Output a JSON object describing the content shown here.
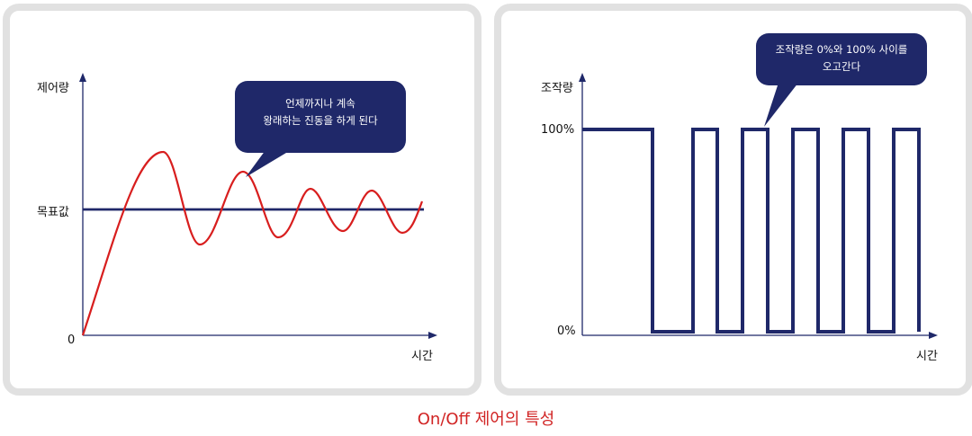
{
  "left_chart": {
    "ylabel": "제어량",
    "xlabel": "시간",
    "target_label": "목표값",
    "zero_label": "0",
    "bubble_lines": [
      "언제까지나 계속",
      "왕래하는 진동을 하게 된다"
    ]
  },
  "right_chart": {
    "ylabel": "조작량",
    "xlabel": "시간",
    "high_label": "100%",
    "low_label": "0%",
    "bubble_lines": [
      "조작량은 0%와 100% 사이를",
      "오고간다"
    ]
  },
  "caption": "On/Off 제어의 특성",
  "colors": {
    "curve": "#d81e1e",
    "axis": "#1f2869",
    "bubble": "#1f2869",
    "border": "#e1e1e1",
    "caption": "#d12424"
  }
}
